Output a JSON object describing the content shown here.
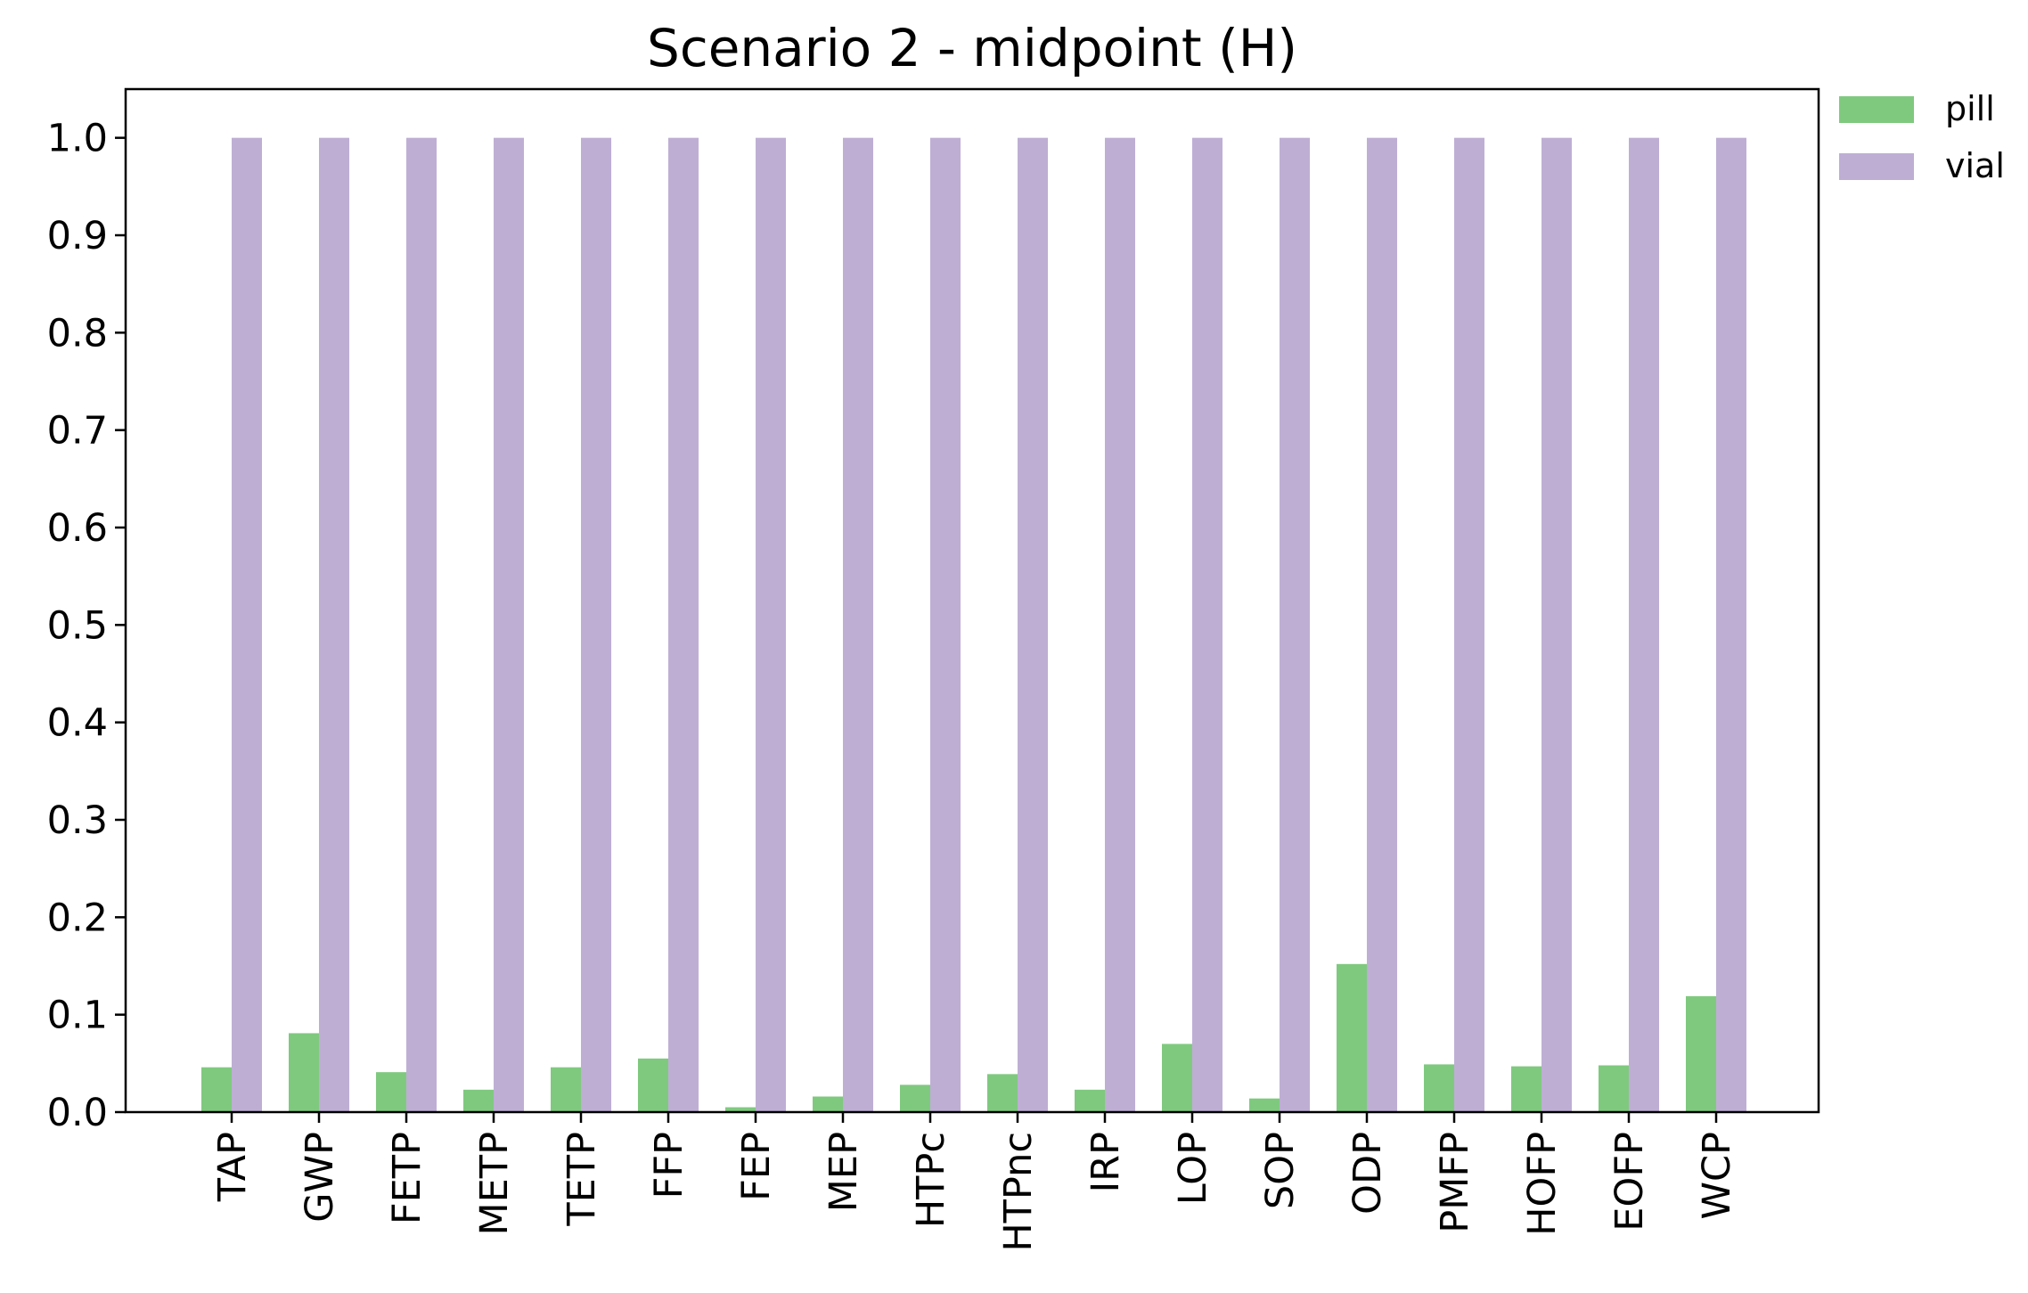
{
  "chart_data": {
    "type": "bar",
    "title": "Scenario 2 - midpoint (H)",
    "xlabel": "",
    "ylabel": "",
    "ylim": [
      0,
      1.05
    ],
    "yticks": [
      "0.0",
      "0.1",
      "0.2",
      "0.3",
      "0.4",
      "0.5",
      "0.6",
      "0.7",
      "0.8",
      "0.9",
      "1.0"
    ],
    "categories": [
      "TAP",
      "GWP",
      "FETP",
      "METP",
      "TETP",
      "FFP",
      "FEP",
      "MEP",
      "HTPc",
      "HTPnc",
      "IRP",
      "LOP",
      "SOP",
      "ODP",
      "PMFP",
      "HOFP",
      "EOFP",
      "WCP"
    ],
    "series": [
      {
        "name": "pill",
        "color": "#7fc97f",
        "values": [
          0.046,
          0.081,
          0.041,
          0.023,
          0.046,
          0.055,
          0.005,
          0.016,
          0.028,
          0.039,
          0.023,
          0.07,
          0.014,
          0.152,
          0.049,
          0.047,
          0.048,
          0.119
        ]
      },
      {
        "name": "vial",
        "color": "#beaed4",
        "values": [
          1.0,
          1.0,
          1.0,
          1.0,
          1.0,
          1.0,
          1.0,
          1.0,
          1.0,
          1.0,
          1.0,
          1.0,
          1.0,
          1.0,
          1.0,
          1.0,
          1.0,
          1.0
        ]
      }
    ],
    "grid": false,
    "legend": "outside-top-right"
  }
}
